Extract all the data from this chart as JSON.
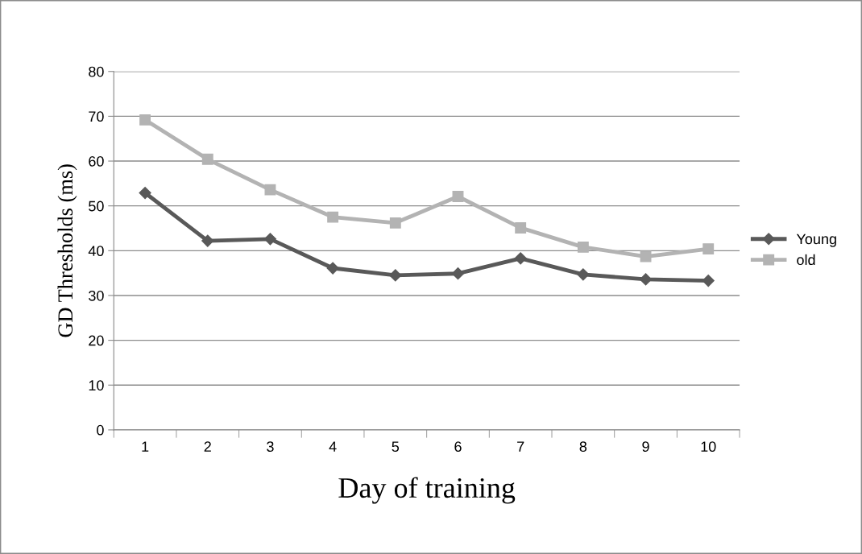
{
  "chart_data": {
    "type": "line",
    "xlabel": "Day of training",
    "ylabel": "GD Thresholds (ms)",
    "categories": [
      "1",
      "2",
      "3",
      "4",
      "5",
      "6",
      "7",
      "8",
      "9",
      "10"
    ],
    "series": [
      {
        "name": "Young",
        "color": "#595959",
        "marker": "diamond",
        "values": [
          52.9,
          42.2,
          42.6,
          36.1,
          34.5,
          34.9,
          38.3,
          34.7,
          33.6,
          33.3
        ]
      },
      {
        "name": "old",
        "color": "#b3b3b3",
        "marker": "square",
        "values": [
          69.2,
          60.4,
          53.6,
          47.5,
          46.2,
          52.1,
          45.1,
          40.8,
          38.7,
          40.4
        ]
      }
    ],
    "ylim": [
      0,
      80
    ],
    "yticks": [
      0,
      10,
      20,
      30,
      40,
      50,
      60,
      70,
      80
    ],
    "grid": "y",
    "legend": "right",
    "line_style": "solid"
  }
}
